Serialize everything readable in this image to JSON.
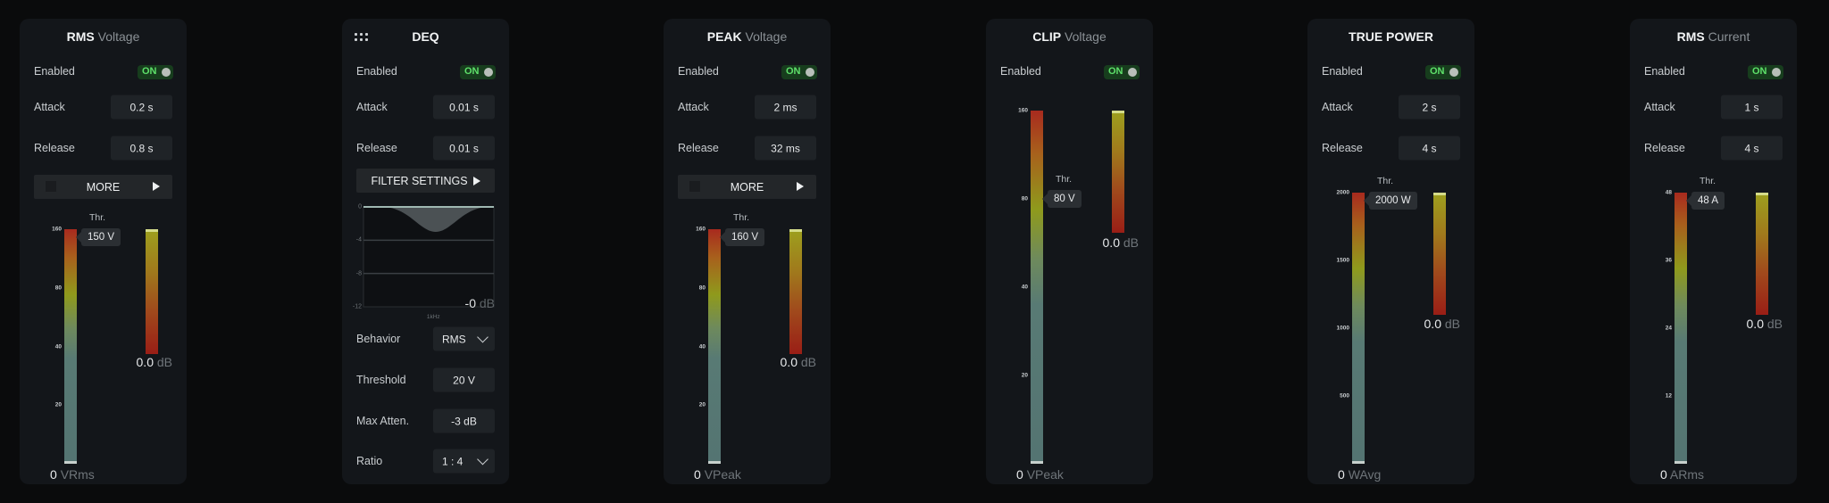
{
  "colors": {
    "background": "#0a0b0c",
    "panel": "#13161a",
    "toggle_on": "#5ee06a",
    "meter_high": "#a82a1e",
    "meter_mid": "#8f9a1c",
    "meter_low": "#547472"
  },
  "panels": [
    {
      "id": "rms-voltage",
      "title_bold": "RMS",
      "title_light": "Voltage",
      "enabled_label": "Enabled",
      "toggle": "ON",
      "rows": [
        {
          "label": "Attack",
          "value": "0.2 s"
        },
        {
          "label": "Release",
          "value": "0.8 s"
        }
      ],
      "button": "MORE",
      "button_icon": "play-triangle-icon",
      "meter": {
        "scale": "log",
        "max": 160,
        "ticks": [
          "160",
          "80",
          "40",
          "20"
        ],
        "thr_label": "Thr.",
        "thr_value": 150,
        "thr_text": "150 V",
        "zero": "0",
        "unit": "VRms"
      },
      "gr": {
        "value": "0.0",
        "unit": "dB"
      }
    },
    {
      "id": "deq",
      "title_bold": "DEQ",
      "title_light": "",
      "icon": "grid-handle-icon",
      "enabled_label": "Enabled",
      "toggle": "ON",
      "rows": [
        {
          "label": "Attack",
          "value": "0.01 s"
        },
        {
          "label": "Release",
          "value": "0.01 s"
        }
      ],
      "button": "FILTER SETTINGS",
      "button_icon": "play-triangle-icon",
      "graph": {
        "y_ticks": [
          "0",
          "-4",
          "-8",
          "-12"
        ],
        "ylim": [
          -12,
          0
        ],
        "x_label": "1kHz",
        "value": "-0",
        "unit": "dB",
        "dip_db": -3
      },
      "lower_rows": [
        {
          "label": "Behavior",
          "value": "RMS",
          "type": "select"
        },
        {
          "label": "Threshold",
          "value": "20 V",
          "type": "field"
        },
        {
          "label": "Max Atten.",
          "value": "-3 dB",
          "type": "field"
        },
        {
          "label": "Ratio",
          "value": "1 : 4",
          "type": "select"
        }
      ]
    },
    {
      "id": "peak-voltage",
      "title_bold": "PEAK",
      "title_light": "Voltage",
      "enabled_label": "Enabled",
      "toggle": "ON",
      "rows": [
        {
          "label": "Attack",
          "value": "2 ms"
        },
        {
          "label": "Release",
          "value": "32 ms"
        }
      ],
      "button": "MORE",
      "button_icon": "play-triangle-icon",
      "meter": {
        "scale": "log",
        "max": 160,
        "ticks": [
          "160",
          "80",
          "40",
          "20"
        ],
        "thr_label": "Thr.",
        "thr_value": 160,
        "thr_text": "160 V",
        "zero": "0",
        "unit": "VPeak"
      },
      "gr": {
        "value": "0.0",
        "unit": "dB"
      }
    },
    {
      "id": "clip-voltage",
      "title_bold": "CLIP",
      "title_light": "Voltage",
      "enabled_label": "Enabled",
      "toggle": "ON",
      "rows": [],
      "meter": {
        "scale": "log",
        "max": 160,
        "ticks": [
          "160",
          "80",
          "40",
          "20"
        ],
        "thr_label": "Thr.",
        "thr_value": 80,
        "thr_text": "80 V",
        "zero": "0",
        "unit": "VPeak"
      },
      "gr": {
        "value": "0.0",
        "unit": "dB"
      }
    },
    {
      "id": "true-power",
      "title_bold": "TRUE POWER",
      "title_light": "",
      "enabled_label": "Enabled",
      "toggle": "ON",
      "rows": [
        {
          "label": "Attack",
          "value": "2 s"
        },
        {
          "label": "Release",
          "value": "4 s"
        }
      ],
      "meter": {
        "scale": "linear",
        "max": 2000,
        "ticks": [
          "2000",
          "1500",
          "1000",
          "500"
        ],
        "thr_label": "Thr.",
        "thr_value": 2000,
        "thr_text": "2000 W",
        "zero": "0",
        "unit": "WAvg"
      },
      "gr": {
        "value": "0.0",
        "unit": "dB"
      }
    },
    {
      "id": "rms-current",
      "title_bold": "RMS",
      "title_light": "Current",
      "enabled_label": "Enabled",
      "toggle": "ON",
      "rows": [
        {
          "label": "Attack",
          "value": "1 s"
        },
        {
          "label": "Release",
          "value": "4 s"
        }
      ],
      "meter": {
        "scale": "linear",
        "max": 48,
        "ticks": [
          "48",
          "36",
          "24",
          "12"
        ],
        "thr_label": "Thr.",
        "thr_value": 48,
        "thr_text": "48 A",
        "zero": "0",
        "unit": "ARms"
      },
      "gr": {
        "value": "0.0",
        "unit": "dB"
      }
    }
  ]
}
